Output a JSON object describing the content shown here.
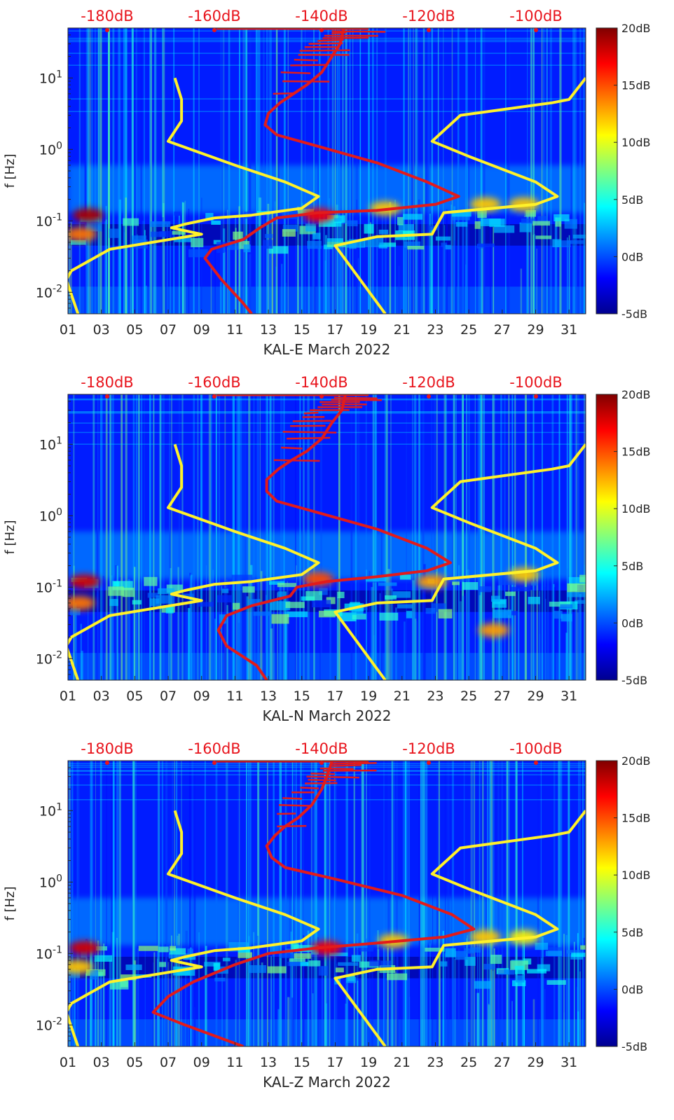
{
  "chart_data": [
    {
      "type": "heatmap",
      "station": "KAL-E",
      "xlabel": "KAL-E March 2022",
      "ylabel": "f [Hz]",
      "x_ticks": [
        "01",
        "03",
        "05",
        "07",
        "09",
        "11",
        "13",
        "15",
        "17",
        "19",
        "21",
        "23",
        "25",
        "27",
        "29",
        "31"
      ],
      "y_ticks": [
        "10^-2",
        "10^-1",
        "10^0",
        "10^1"
      ],
      "y_tick_values": [
        0.01,
        0.1,
        1,
        10
      ],
      "ylim": [
        0.005,
        50
      ],
      "xlim": [
        1,
        32
      ],
      "top_axis_labels": [
        "-180dB",
        "-160dB",
        "-140dB",
        "-120dB",
        "-100dB"
      ],
      "colorbar": {
        "labels": [
          "20dB",
          "15dB",
          "10dB",
          "5dB",
          "0dB",
          "-5dB"
        ],
        "range": [
          -5,
          20
        ]
      },
      "hotspots": [
        {
          "day": 2.2,
          "freq": 0.12,
          "value": 19
        },
        {
          "day": 1.8,
          "freq": 0.065,
          "value": 14
        },
        {
          "day": 16.0,
          "freq": 0.12,
          "value": 17
        },
        {
          "day": 20.0,
          "freq": 0.15,
          "value": 12
        },
        {
          "day": 26.0,
          "freq": 0.17,
          "value": 12
        },
        {
          "day": 28.3,
          "freq": 0.17,
          "value": 12
        }
      ],
      "series": [
        {
          "name": "yellow-left",
          "color": "#fff12a",
          "points": [
            [
              7.4,
              10
            ],
            [
              7.8,
              5
            ],
            [
              7.8,
              2.5
            ],
            [
              7.0,
              1.3
            ],
            [
              11.0,
              0.6
            ],
            [
              14.0,
              0.35
            ],
            [
              16.0,
              0.22
            ],
            [
              15.0,
              0.15
            ],
            [
              12.0,
              0.12
            ],
            [
              9.8,
              0.11
            ],
            [
              8.0,
              0.09
            ],
            [
              7.2,
              0.08
            ],
            [
              9.0,
              0.065
            ],
            [
              3.5,
              0.04
            ],
            [
              1.2,
              0.02
            ],
            [
              0.9,
              0.015
            ],
            [
              1.6,
              0.005
            ]
          ]
        },
        {
          "name": "yellow-right",
          "color": "#fff12a",
          "points": [
            [
              32.0,
              10
            ],
            [
              31.0,
              5
            ],
            [
              30.0,
              4.5
            ],
            [
              24.5,
              3.0
            ],
            [
              22.8,
              1.3
            ],
            [
              25.0,
              0.8
            ],
            [
              29.0,
              0.35
            ],
            [
              30.3,
              0.22
            ],
            [
              29.0,
              0.17
            ],
            [
              23.5,
              0.13
            ],
            [
              23.0,
              0.08
            ],
            [
              22.8,
              0.065
            ],
            [
              19.5,
              0.06
            ],
            [
              17.0,
              0.045
            ],
            [
              20.0,
              0.005
            ]
          ]
        },
        {
          "name": "red-noise-model",
          "color": "#e21b1b",
          "points": [
            [
              17.5,
              48
            ],
            [
              17.3,
              30
            ],
            [
              16.8,
              20
            ],
            [
              16.2,
              12
            ],
            [
              15.3,
              8
            ],
            [
              14.5,
              6
            ],
            [
              13.7,
              4.5
            ],
            [
              13.0,
              3.2
            ],
            [
              12.8,
              2.2
            ],
            [
              13.5,
              1.6
            ],
            [
              16.0,
              1.1
            ],
            [
              19.5,
              0.65
            ],
            [
              22.5,
              0.35
            ],
            [
              24.4,
              0.22
            ],
            [
              23.0,
              0.17
            ],
            [
              19.5,
              0.14
            ],
            [
              16.0,
              0.13
            ],
            [
              13.5,
              0.11
            ],
            [
              12.5,
              0.08
            ],
            [
              11.5,
              0.055
            ],
            [
              9.6,
              0.04
            ],
            [
              9.2,
              0.03
            ],
            [
              10.2,
              0.015
            ],
            [
              11.5,
              0.007
            ],
            [
              12.0,
              0.005
            ]
          ]
        }
      ]
    },
    {
      "type": "heatmap",
      "station": "KAL-N",
      "xlabel": "KAL-N March 2022",
      "ylabel": "f [Hz]",
      "x_ticks": [
        "01",
        "03",
        "05",
        "07",
        "09",
        "11",
        "13",
        "15",
        "17",
        "19",
        "21",
        "23",
        "25",
        "27",
        "29",
        "31"
      ],
      "y_ticks": [
        "10^-2",
        "10^-1",
        "10^0",
        "10^1"
      ],
      "y_tick_values": [
        0.01,
        0.1,
        1,
        10
      ],
      "ylim": [
        0.005,
        50
      ],
      "xlim": [
        1,
        32
      ],
      "top_axis_labels": [
        "-180dB",
        "-160dB",
        "-140dB",
        "-120dB",
        "-100dB"
      ],
      "colorbar": {
        "labels": [
          "20dB",
          "15dB",
          "10dB",
          "5dB",
          "0dB",
          "-5dB"
        ],
        "range": [
          -5,
          20
        ]
      },
      "hotspots": [
        {
          "day": 2.0,
          "freq": 0.12,
          "value": 18
        },
        {
          "day": 1.7,
          "freq": 0.06,
          "value": 14
        },
        {
          "day": 16.0,
          "freq": 0.13,
          "value": 15
        },
        {
          "day": 22.8,
          "freq": 0.12,
          "value": 13
        },
        {
          "day": 26.5,
          "freq": 0.025,
          "value": 13
        },
        {
          "day": 28.3,
          "freq": 0.15,
          "value": 12
        }
      ],
      "series": [
        {
          "name": "yellow-left",
          "color": "#fff12a",
          "points": [
            [
              7.4,
              10
            ],
            [
              7.8,
              5
            ],
            [
              7.8,
              2.5
            ],
            [
              7.0,
              1.3
            ],
            [
              11.0,
              0.6
            ],
            [
              14.0,
              0.35
            ],
            [
              16.0,
              0.22
            ],
            [
              15.0,
              0.15
            ],
            [
              12.0,
              0.12
            ],
            [
              9.8,
              0.11
            ],
            [
              8.0,
              0.09
            ],
            [
              7.2,
              0.08
            ],
            [
              9.0,
              0.065
            ],
            [
              3.5,
              0.04
            ],
            [
              1.2,
              0.02
            ],
            [
              0.9,
              0.015
            ],
            [
              1.6,
              0.005
            ]
          ]
        },
        {
          "name": "yellow-right",
          "color": "#fff12a",
          "points": [
            [
              32.0,
              10
            ],
            [
              31.0,
              5
            ],
            [
              30.0,
              4.5
            ],
            [
              24.5,
              3.0
            ],
            [
              22.8,
              1.3
            ],
            [
              25.0,
              0.8
            ],
            [
              29.0,
              0.35
            ],
            [
              30.3,
              0.22
            ],
            [
              29.0,
              0.17
            ],
            [
              23.5,
              0.13
            ],
            [
              23.0,
              0.08
            ],
            [
              22.8,
              0.065
            ],
            [
              19.5,
              0.06
            ],
            [
              17.0,
              0.045
            ],
            [
              20.0,
              0.005
            ]
          ]
        },
        {
          "name": "red-noise-model",
          "color": "#e21b1b",
          "points": [
            [
              17.6,
              48
            ],
            [
              17.4,
              30
            ],
            [
              16.8,
              20
            ],
            [
              16.2,
              12
            ],
            [
              15.3,
              8
            ],
            [
              14.4,
              6
            ],
            [
              13.6,
              4.5
            ],
            [
              12.9,
              3.2
            ],
            [
              12.9,
              2.2
            ],
            [
              13.5,
              1.6
            ],
            [
              16.0,
              1.1
            ],
            [
              19.5,
              0.65
            ],
            [
              22.5,
              0.35
            ],
            [
              23.9,
              0.22
            ],
            [
              22.5,
              0.17
            ],
            [
              19.5,
              0.14
            ],
            [
              16.5,
              0.12
            ],
            [
              14.7,
              0.1
            ],
            [
              14.3,
              0.075
            ],
            [
              12.0,
              0.055
            ],
            [
              10.5,
              0.04
            ],
            [
              10.0,
              0.025
            ],
            [
              10.5,
              0.015
            ],
            [
              12.3,
              0.008
            ],
            [
              12.9,
              0.005
            ]
          ]
        }
      ]
    },
    {
      "type": "heatmap",
      "station": "KAL-Z",
      "xlabel": "KAL-Z March 2022",
      "ylabel": "f [Hz]",
      "x_ticks": [
        "01",
        "03",
        "05",
        "07",
        "09",
        "11",
        "13",
        "15",
        "17",
        "19",
        "21",
        "23",
        "25",
        "27",
        "29",
        "31"
      ],
      "y_ticks": [
        "10^-2",
        "10^-1",
        "10^0",
        "10^1"
      ],
      "y_tick_values": [
        0.01,
        0.1,
        1,
        10
      ],
      "ylim": [
        0.005,
        50
      ],
      "xlim": [
        1,
        32
      ],
      "top_axis_labels": [
        "-180dB",
        "-160dB",
        "-140dB",
        "-120dB",
        "-100dB"
      ],
      "colorbar": {
        "labels": [
          "20dB",
          "15dB",
          "10dB",
          "5dB",
          "0dB",
          "-5dB"
        ],
        "range": [
          -5,
          20
        ]
      },
      "hotspots": [
        {
          "day": 2.0,
          "freq": 0.12,
          "value": 18
        },
        {
          "day": 1.6,
          "freq": 0.065,
          "value": 12
        },
        {
          "day": 16.5,
          "freq": 0.12,
          "value": 17
        },
        {
          "day": 20.5,
          "freq": 0.15,
          "value": 12
        },
        {
          "day": 26.0,
          "freq": 0.17,
          "value": 12
        },
        {
          "day": 28.3,
          "freq": 0.17,
          "value": 11
        }
      ],
      "series": [
        {
          "name": "yellow-left",
          "color": "#fff12a",
          "points": [
            [
              7.4,
              10
            ],
            [
              7.8,
              5
            ],
            [
              7.8,
              2.5
            ],
            [
              7.0,
              1.3
            ],
            [
              11.0,
              0.6
            ],
            [
              14.0,
              0.35
            ],
            [
              16.0,
              0.22
            ],
            [
              15.0,
              0.15
            ],
            [
              12.0,
              0.12
            ],
            [
              9.8,
              0.11
            ],
            [
              8.0,
              0.09
            ],
            [
              7.2,
              0.08
            ],
            [
              9.0,
              0.065
            ],
            [
              3.5,
              0.04
            ],
            [
              1.2,
              0.02
            ],
            [
              0.9,
              0.015
            ],
            [
              1.6,
              0.005
            ]
          ]
        },
        {
          "name": "yellow-right",
          "color": "#fff12a",
          "points": [
            [
              32.0,
              10
            ],
            [
              31.0,
              5
            ],
            [
              30.0,
              4.5
            ],
            [
              24.5,
              3.0
            ],
            [
              22.8,
              1.3
            ],
            [
              25.0,
              0.8
            ],
            [
              29.0,
              0.35
            ],
            [
              30.3,
              0.22
            ],
            [
              29.0,
              0.17
            ],
            [
              23.5,
              0.13
            ],
            [
              23.0,
              0.08
            ],
            [
              22.8,
              0.065
            ],
            [
              19.5,
              0.06
            ],
            [
              17.0,
              0.045
            ],
            [
              20.0,
              0.005
            ]
          ]
        },
        {
          "name": "red-noise-model",
          "color": "#e21b1b",
          "points": [
            [
              16.8,
              48
            ],
            [
              16.5,
              30
            ],
            [
              16.2,
              20
            ],
            [
              15.6,
              12
            ],
            [
              14.8,
              8
            ],
            [
              14.0,
              6
            ],
            [
              13.4,
              4.5
            ],
            [
              12.9,
              3.2
            ],
            [
              13.2,
              2.2
            ],
            [
              14.0,
              1.6
            ],
            [
              17.0,
              1.1
            ],
            [
              21.0,
              0.65
            ],
            [
              24.0,
              0.35
            ],
            [
              25.3,
              0.22
            ],
            [
              23.5,
              0.17
            ],
            [
              19.5,
              0.14
            ],
            [
              16.0,
              0.12
            ],
            [
              13.0,
              0.1
            ],
            [
              11.0,
              0.07
            ],
            [
              8.5,
              0.04
            ],
            [
              7.0,
              0.025
            ],
            [
              6.1,
              0.015
            ],
            [
              8.0,
              0.01
            ],
            [
              11.5,
              0.005
            ]
          ]
        }
      ]
    }
  ]
}
